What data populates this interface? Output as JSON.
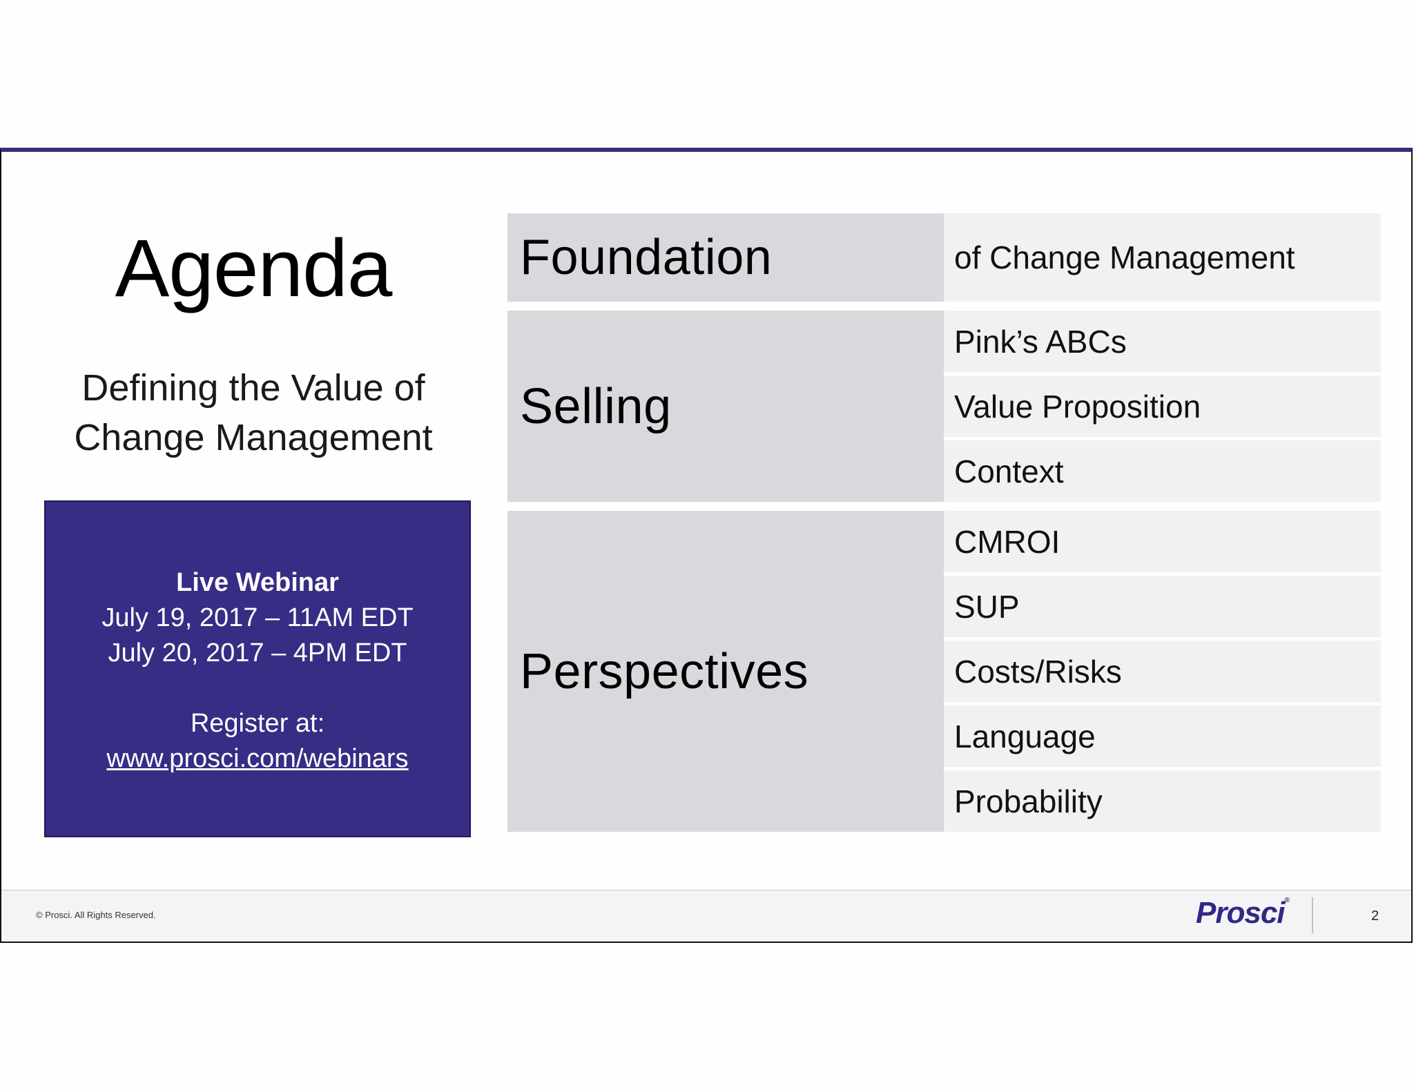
{
  "slide": {
    "title": "Agenda",
    "subtitle_line1": "Defining the Value of",
    "subtitle_line2": "Change Management",
    "webinar": {
      "title": "Live Webinar",
      "date1": "July 19, 2017 – 11AM EDT",
      "date2": "July 20, 2017 – 4PM EDT",
      "register_label": "Register at:",
      "register_url": "www.prosci.com/webinars"
    },
    "sections": [
      {
        "label": "Foundation",
        "items": [
          "of Change Management"
        ]
      },
      {
        "label": "Selling",
        "items": [
          "Pink’s ABCs",
          "Value Proposition",
          "Context"
        ]
      },
      {
        "label": "Perspectives",
        "items": [
          "CMROI",
          "SUP",
          "Costs/Risks",
          "Language",
          "Probability"
        ]
      }
    ],
    "footer": {
      "copyright": "© Prosci. All Rights Reserved.",
      "logo": "Prosci",
      "page_number": "2"
    }
  },
  "colors": {
    "brand_purple": "#372d84",
    "label_gray": "#d9d8dc",
    "item_gray": "#f1f0f3"
  }
}
